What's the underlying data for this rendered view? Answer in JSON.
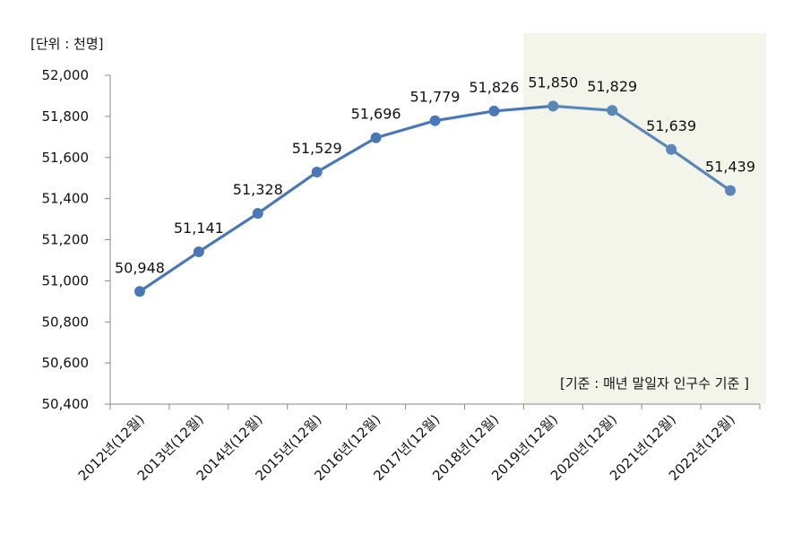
{
  "chart_data": {
    "type": "line",
    "unit_label": "[단위 : 천명]",
    "categories": [
      "2012년(12월)",
      "2013년(12월)",
      "2014년(12월)",
      "2015년(12월)",
      "2016년(12월)",
      "2017년(12월)",
      "2018년(12월)",
      "2019년(12월)",
      "2020년(12월)",
      "2021년(12월)",
      "2022년(12월)"
    ],
    "series": [
      {
        "values": [
          50948,
          51141,
          51328,
          51529,
          51696,
          51779,
          51826,
          51850,
          51829,
          51639,
          51439
        ],
        "data_labels": [
          "50,948",
          "51,141",
          "51,328",
          "51,529",
          "51,696",
          "51,779",
          "51,826",
          "51,850",
          "51,829",
          "51,639",
          "51,439"
        ]
      }
    ],
    "ylim": [
      50400,
      52000
    ],
    "yticks": [
      "50,400",
      "50,600",
      "50,800",
      "51,000",
      "51,200",
      "51,400",
      "51,600",
      "51,800",
      "52,000"
    ],
    "grid": false,
    "highlight": {
      "from_category": "2019년(12월)",
      "to_category": "2022년(12월)",
      "note": "[기준 : 매년 말일자 인구수 기준 ]"
    },
    "colors": {
      "line_main": "#4A78B6",
      "line_highlight": "#5B87B8",
      "highlight_bg": "#F3F5EA",
      "axis": "#888888"
    }
  }
}
